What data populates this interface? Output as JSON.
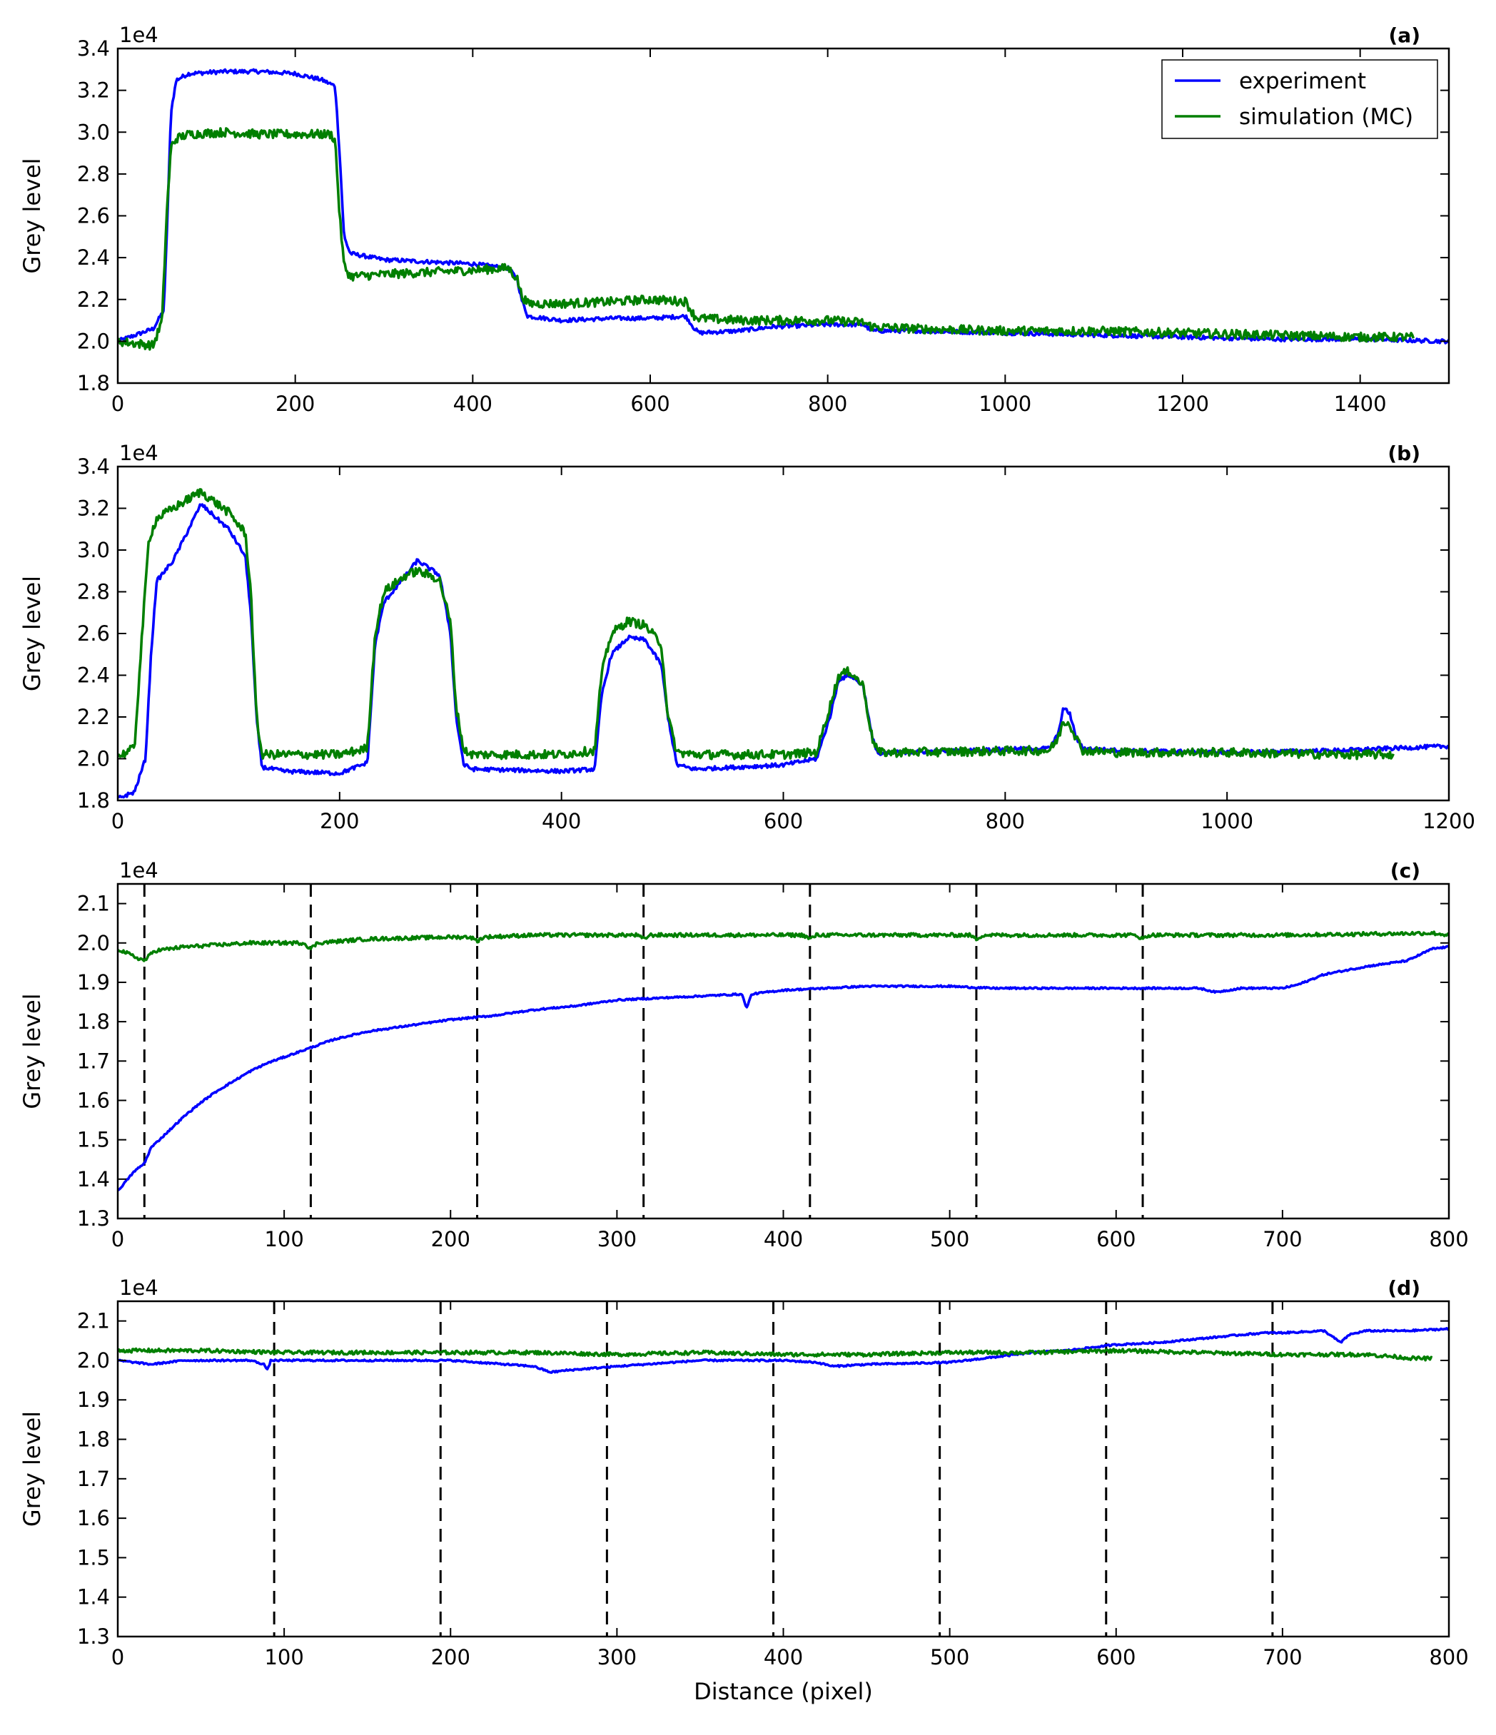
{
  "figure": {
    "xlabel": "Distance (pixel)",
    "ylabel": "Grey level",
    "legend": {
      "placement": "top-right of panel (a)",
      "entries": [
        {
          "label": "experiment",
          "color": "#0000ff"
        },
        {
          "label": "simulation (MC)",
          "color": "#007f00"
        }
      ]
    },
    "colors": {
      "experiment": "#0000ff",
      "simulation": "#007f00",
      "guide_lines": "#000000"
    }
  },
  "chart_data": [
    {
      "type": "line",
      "panel_label": "(a)",
      "ylabel": "Grey level",
      "xlabel": "",
      "y_multiplier": "1e4",
      "xlim": [
        0,
        1500
      ],
      "ylim": [
        1.8,
        3.4
      ],
      "x_ticks": [
        0,
        200,
        400,
        600,
        800,
        1000,
        1200,
        1400
      ],
      "y_ticks": [
        1.8,
        2.0,
        2.2,
        2.4,
        2.6,
        2.8,
        3.0,
        3.2,
        3.4
      ],
      "grid": false,
      "legend": "top-right",
      "series": [
        {
          "name": "experiment",
          "color": "#0000ff",
          "x": [
            0,
            40,
            52,
            56,
            60,
            66,
            80,
            120,
            160,
            200,
            230,
            245,
            250,
            255,
            262,
            300,
            350,
            400,
            440,
            450,
            455,
            462,
            500,
            560,
            600,
            640,
            650,
            655,
            700,
            740,
            800,
            840,
            850,
            900,
            1000,
            1100,
            1200,
            1300,
            1400,
            1500
          ],
          "y": [
            2.0,
            2.06,
            2.15,
            2.6,
            3.1,
            3.25,
            3.28,
            3.29,
            3.29,
            3.28,
            3.25,
            3.22,
            2.9,
            2.5,
            2.42,
            2.39,
            2.38,
            2.37,
            2.35,
            2.3,
            2.2,
            2.12,
            2.1,
            2.11,
            2.11,
            2.12,
            2.06,
            2.04,
            2.05,
            2.07,
            2.08,
            2.08,
            2.05,
            2.05,
            2.04,
            2.03,
            2.02,
            2.01,
            2.01,
            2.0
          ]
        },
        {
          "name": "simulation (MC)",
          "color": "#007f00",
          "x": [
            0,
            40,
            50,
            55,
            60,
            66,
            80,
            120,
            160,
            200,
            240,
            245,
            250,
            255,
            262,
            300,
            350,
            400,
            440,
            450,
            455,
            462,
            500,
            560,
            600,
            640,
            650,
            655,
            700,
            740,
            800,
            840,
            850,
            900,
            1000,
            1100,
            1200,
            1300,
            1400,
            1460
          ],
          "y": [
            2.0,
            1.98,
            2.1,
            2.6,
            2.93,
            2.97,
            2.99,
            3.0,
            2.99,
            2.99,
            2.99,
            2.96,
            2.6,
            2.36,
            2.31,
            2.32,
            2.33,
            2.34,
            2.35,
            2.3,
            2.22,
            2.18,
            2.18,
            2.19,
            2.2,
            2.19,
            2.12,
            2.11,
            2.1,
            2.1,
            2.1,
            2.09,
            2.07,
            2.06,
            2.05,
            2.05,
            2.04,
            2.03,
            2.02,
            2.02
          ]
        }
      ]
    },
    {
      "type": "line",
      "panel_label": "(b)",
      "ylabel": "Grey level",
      "xlabel": "",
      "y_multiplier": "1e4",
      "xlim": [
        0,
        1200
      ],
      "ylim": [
        1.8,
        3.4
      ],
      "x_ticks": [
        0,
        200,
        400,
        600,
        800,
        1000,
        1200
      ],
      "y_ticks": [
        1.8,
        2.0,
        2.2,
        2.4,
        2.6,
        2.8,
        3.0,
        3.2,
        3.4
      ],
      "grid": false,
      "series": [
        {
          "name": "experiment",
          "color": "#0000ff",
          "x": [
            0,
            15,
            25,
            30,
            35,
            50,
            75,
            100,
            115,
            120,
            125,
            130,
            150,
            200,
            225,
            232,
            240,
            260,
            270,
            290,
            300,
            305,
            312,
            320,
            400,
            430,
            436,
            445,
            460,
            475,
            490,
            496,
            504,
            520,
            600,
            630,
            642,
            650,
            660,
            672,
            680,
            686,
            700,
            840,
            848,
            852,
            858,
            864,
            870,
            900,
            1000,
            1100,
            1200
          ],
          "y": [
            1.81,
            1.84,
            2.0,
            2.5,
            2.85,
            2.95,
            3.22,
            3.1,
            2.97,
            2.7,
            2.2,
            1.96,
            1.94,
            1.93,
            1.98,
            2.55,
            2.75,
            2.88,
            2.95,
            2.88,
            2.6,
            2.2,
            1.97,
            1.95,
            1.94,
            1.95,
            2.3,
            2.5,
            2.58,
            2.57,
            2.45,
            2.2,
            1.97,
            1.95,
            1.97,
            2.0,
            2.2,
            2.38,
            2.4,
            2.35,
            2.1,
            2.02,
            2.03,
            2.05,
            2.12,
            2.24,
            2.22,
            2.1,
            2.05,
            2.04,
            2.03,
            2.04,
            2.06
          ]
        },
        {
          "name": "simulation (MC)",
          "color": "#007f00",
          "x": [
            0,
            15,
            22,
            28,
            35,
            50,
            75,
            100,
            115,
            120,
            125,
            130,
            150,
            200,
            225,
            232,
            240,
            260,
            270,
            290,
            300,
            305,
            312,
            320,
            400,
            430,
            436,
            445,
            460,
            475,
            490,
            496,
            504,
            520,
            600,
            630,
            642,
            650,
            660,
            672,
            680,
            686,
            700,
            840,
            848,
            852,
            858,
            864,
            870,
            900,
            1000,
            1100,
            1150
          ],
          "y": [
            2.01,
            2.05,
            2.6,
            3.05,
            3.15,
            3.2,
            3.28,
            3.18,
            3.08,
            2.8,
            2.2,
            2.02,
            2.02,
            2.02,
            2.05,
            2.6,
            2.8,
            2.88,
            2.9,
            2.86,
            2.65,
            2.25,
            2.04,
            2.02,
            2.02,
            2.04,
            2.4,
            2.6,
            2.66,
            2.64,
            2.55,
            2.2,
            2.03,
            2.02,
            2.02,
            2.03,
            2.25,
            2.4,
            2.42,
            2.35,
            2.1,
            2.03,
            2.03,
            2.04,
            2.1,
            2.18,
            2.17,
            2.1,
            2.04,
            2.03,
            2.03,
            2.02,
            2.02
          ]
        }
      ]
    },
    {
      "type": "line",
      "panel_label": "(c)",
      "ylabel": "Grey level",
      "xlabel": "",
      "y_multiplier": "1e4",
      "xlim": [
        0,
        800
      ],
      "ylim": [
        1.3,
        2.15
      ],
      "x_ticks": [
        0,
        100,
        200,
        300,
        400,
        500,
        600,
        700,
        800
      ],
      "y_ticks": [
        1.3,
        1.4,
        1.5,
        1.6,
        1.7,
        1.8,
        1.9,
        2.0,
        2.1
      ],
      "grid": false,
      "vlines": [
        16,
        116,
        216,
        316,
        416,
        516,
        616
      ],
      "series": [
        {
          "name": "experiment",
          "color": "#0000ff",
          "x": [
            0,
            10,
            16,
            20,
            30,
            40,
            50,
            60,
            70,
            80,
            90,
            100,
            110,
            120,
            130,
            140,
            150,
            175,
            200,
            225,
            250,
            275,
            300,
            325,
            350,
            375,
            378,
            381,
            390,
            400,
            425,
            450,
            475,
            500,
            525,
            550,
            575,
            600,
            625,
            650,
            660,
            675,
            700,
            710,
            725,
            750,
            775,
            790,
            800
          ],
          "y": [
            1.37,
            1.42,
            1.44,
            1.48,
            1.52,
            1.56,
            1.595,
            1.625,
            1.65,
            1.675,
            1.695,
            1.71,
            1.725,
            1.74,
            1.755,
            1.765,
            1.775,
            1.79,
            1.805,
            1.815,
            1.83,
            1.84,
            1.855,
            1.86,
            1.865,
            1.87,
            1.835,
            1.87,
            1.875,
            1.88,
            1.885,
            1.89,
            1.89,
            1.89,
            1.885,
            1.885,
            1.885,
            1.885,
            1.885,
            1.885,
            1.875,
            1.885,
            1.885,
            1.895,
            1.92,
            1.94,
            1.955,
            1.985,
            1.99
          ]
        },
        {
          "name": "simulation (MC)",
          "color": "#007f00",
          "x": [
            0,
            10,
            16,
            22,
            40,
            80,
            112,
            116,
            120,
            150,
            200,
            212,
            216,
            220,
            250,
            300,
            312,
            316,
            320,
            350,
            400,
            412,
            416,
            420,
            500,
            512,
            516,
            520,
            600,
            612,
            616,
            620,
            700,
            790,
            800
          ],
          "y": [
            1.985,
            1.965,
            1.955,
            1.98,
            1.99,
            2.0,
            2.0,
            1.985,
            2.0,
            2.01,
            2.015,
            2.015,
            2.005,
            2.015,
            2.02,
            2.02,
            2.02,
            2.01,
            2.02,
            2.02,
            2.02,
            2.02,
            2.01,
            2.02,
            2.02,
            2.02,
            2.01,
            2.02,
            2.02,
            2.02,
            2.01,
            2.02,
            2.02,
            2.025,
            2.02
          ]
        }
      ]
    },
    {
      "type": "line",
      "panel_label": "(d)",
      "ylabel": "Grey level",
      "xlabel": "Distance (pixel)",
      "y_multiplier": "1e4",
      "xlim": [
        0,
        800
      ],
      "ylim": [
        1.3,
        2.15
      ],
      "x_ticks": [
        0,
        100,
        200,
        300,
        400,
        500,
        600,
        700,
        800
      ],
      "y_ticks": [
        1.3,
        1.4,
        1.5,
        1.6,
        1.7,
        1.8,
        1.9,
        2.0,
        2.1
      ],
      "grid": false,
      "vlines": [
        94,
        194,
        294,
        394,
        494,
        594,
        694
      ],
      "series": [
        {
          "name": "experiment",
          "color": "#0000ff",
          "x": [
            0,
            20,
            40,
            80,
            88,
            90,
            92,
            100,
            150,
            200,
            250,
            260,
            270,
            300,
            350,
            400,
            420,
            430,
            450,
            500,
            550,
            570,
            580,
            600,
            625,
            650,
            675,
            690,
            700,
            725,
            730,
            735,
            740,
            750,
            775,
            800
          ],
          "y": [
            2.0,
            1.99,
            2.0,
            2.0,
            1.99,
            1.975,
            2.0,
            2.0,
            2.0,
            2.0,
            1.985,
            1.97,
            1.975,
            1.985,
            2.0,
            2.0,
            1.995,
            1.985,
            1.99,
            1.995,
            2.02,
            2.025,
            2.03,
            2.04,
            2.045,
            2.055,
            2.065,
            2.07,
            2.07,
            2.075,
            2.06,
            2.045,
            2.065,
            2.075,
            2.075,
            2.08
          ]
        },
        {
          "name": "simulation (MC)",
          "color": "#007f00",
          "x": [
            0,
            50,
            100,
            150,
            200,
            250,
            300,
            350,
            400,
            450,
            500,
            550,
            600,
            650,
            700,
            750,
            780,
            790
          ],
          "y": [
            2.025,
            2.025,
            2.02,
            2.02,
            2.02,
            2.02,
            2.015,
            2.02,
            2.015,
            2.015,
            2.02,
            2.02,
            2.025,
            2.02,
            2.015,
            2.015,
            2.005,
            2.005
          ]
        }
      ]
    }
  ]
}
